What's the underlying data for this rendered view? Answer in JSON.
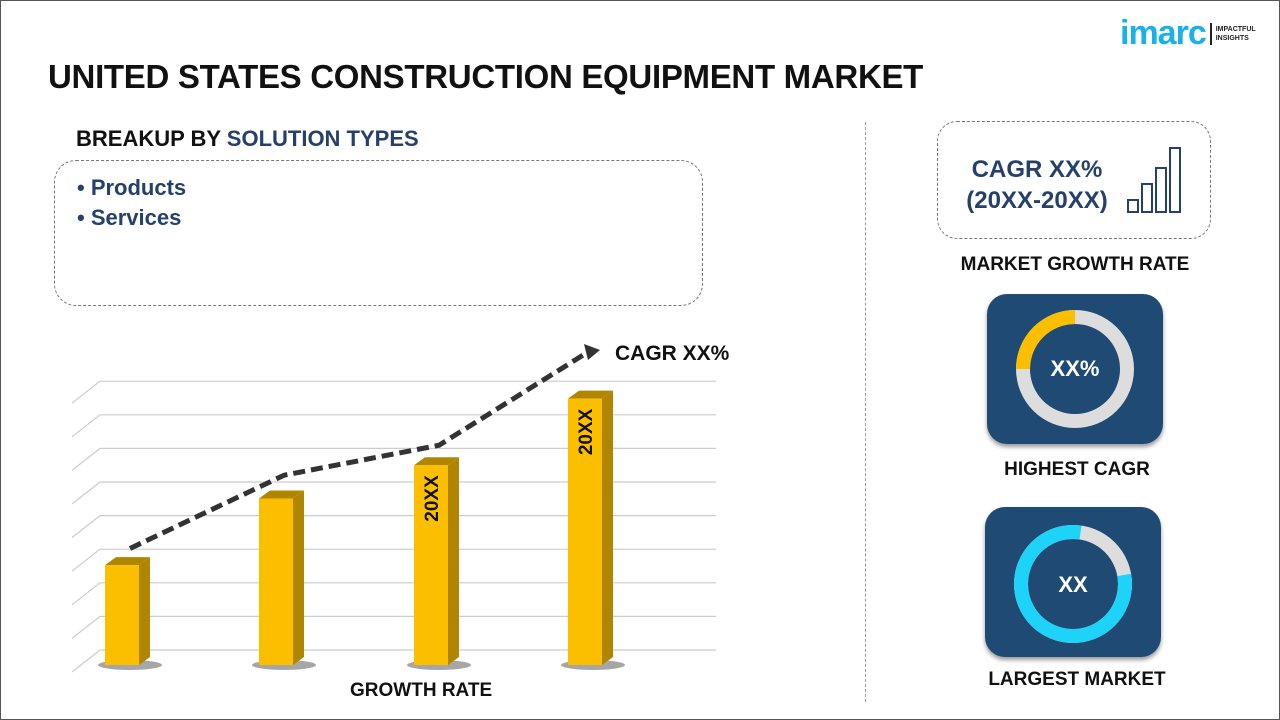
{
  "title": "UNITED STATES CONSTRUCTION EQUIPMENT MARKET",
  "logo": {
    "word": "imarc",
    "tagline_1": "IMPACTFUL",
    "tagline_2": "INSIGHTS"
  },
  "breakup": {
    "prefix": "BREAKUP BY ",
    "highlight": "SOLUTION TYPES",
    "items": [
      "• Products",
      "• Services"
    ]
  },
  "growth_box": {
    "line1": "CAGR XX%",
    "line2": "(20XX-20XX)",
    "label": "MARKET GROWTH RATE"
  },
  "highest_cagr": {
    "value": "XX%",
    "label": "HIGHEST CAGR",
    "fill_fraction": 0.25
  },
  "largest_market": {
    "value": "XX",
    "label": "LARGEST MARKET",
    "fill_fraction": 0.8
  },
  "colors": {
    "bar": "#fbbf00",
    "bar_side": "#b08600",
    "navy": "#24406b",
    "card": "#1f4a73",
    "gold_ring": "#fbbf00",
    "cyan_ring": "#1dd3f7"
  },
  "chart_data": {
    "type": "bar",
    "categories": [
      "",
      "",
      "20XX",
      "20XX"
    ],
    "values": [
      3,
      5,
      6,
      8
    ],
    "trend": [
      3.5,
      5.7,
      6.6,
      9.3
    ],
    "xlabel": "GROWTH RATE",
    "annotation": "CAGR XX%",
    "ylim": [
      0,
      8.5
    ],
    "grid": true
  }
}
